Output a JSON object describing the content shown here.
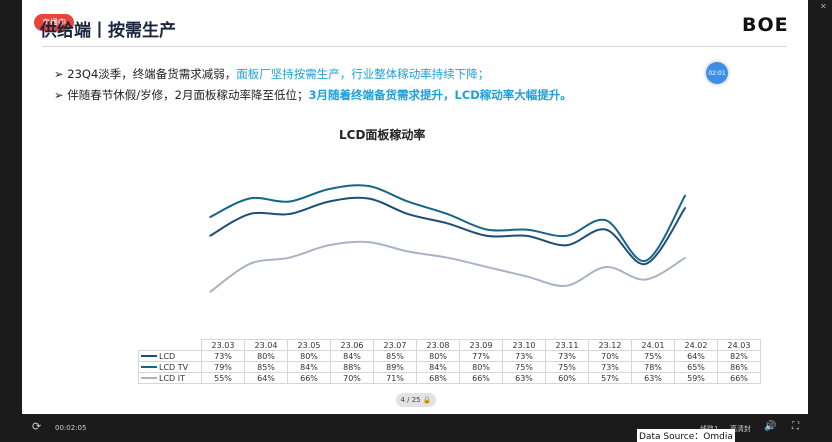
{
  "live_badge": "直播中",
  "title": "供给端丨按需生产",
  "logo": "BOE",
  "bullets": [
    {
      "prefix": "➢ 23Q4淡季，终端备货需求减弱，",
      "highlight": "面板厂坚持按需生产，行业整体稼动率持续下降；",
      "suffix": ""
    },
    {
      "prefix": "➢ 伴随春节休假/岁修，2月面板稼动率降至低位；",
      "highlight": "3月随着终端备货需求提升，LCD稼动率大幅提升。",
      "suffix": ""
    }
  ],
  "timer": "02:01",
  "chart_data": {
    "type": "line",
    "title": "LCD面板稼动率",
    "categories": [
      "23.03",
      "23.04",
      "23.05",
      "23.06",
      "23.07",
      "23.08",
      "23.09",
      "23.10",
      "23.11",
      "23.12",
      "24.01",
      "24.02",
      "24.03"
    ],
    "series": [
      {
        "name": "LCD",
        "color": "#1d4e74",
        "values": [
          "73%",
          "80%",
          "80%",
          "84%",
          "85%",
          "80%",
          "77%",
          "73%",
          "73%",
          "70%",
          "75%",
          "64%",
          "82%"
        ]
      },
      {
        "name": "LCD TV",
        "color": "#15658a",
        "values": [
          "79%",
          "85%",
          "84%",
          "88%",
          "89%",
          "84%",
          "80%",
          "75%",
          "75%",
          "73%",
          "78%",
          "65%",
          "86%"
        ]
      },
      {
        "name": "LCD  IT",
        "color": "#a9b3c4",
        "values": [
          "55%",
          "64%",
          "66%",
          "70%",
          "71%",
          "68%",
          "66%",
          "63%",
          "60%",
          "57%",
          "63%",
          "59%",
          "66%"
        ]
      }
    ]
  },
  "page_indicator": "4 / 25",
  "controls": {
    "time": "00:02:05",
    "btn_line": "线路1",
    "btn_quality": "高清封",
    "volume_icon": "speaker-icon",
    "fullscreen_icon": "fullscreen-icon",
    "more_icon": "close-icon"
  },
  "data_source": "Data Source：Omdia"
}
